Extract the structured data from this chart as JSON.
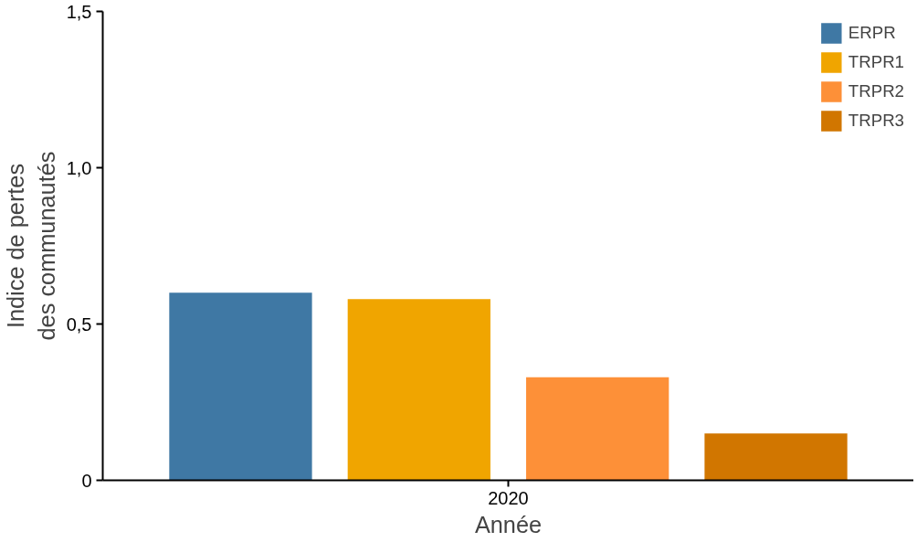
{
  "chart_data": {
    "type": "bar",
    "xlabel": "Année",
    "ylabel": "Indice de pertes\ndes communautés",
    "categories": [
      "2020"
    ],
    "series": [
      {
        "name": "ERPR",
        "color": "#3f78a4",
        "values": [
          0.6
        ]
      },
      {
        "name": "TRPR1",
        "color": "#f0a500",
        "values": [
          0.58
        ]
      },
      {
        "name": "TRPR2",
        "color": "#fd9038",
        "values": [
          0.33
        ]
      },
      {
        "name": "TRPR3",
        "color": "#d17600",
        "values": [
          0.15
        ]
      }
    ],
    "ylim": [
      0,
      1.5
    ],
    "yticks": [
      0,
      {
        "value": 0.5,
        "label": "0,5"
      },
      {
        "value": 1.0,
        "label": "1,0"
      },
      {
        "value": 1.5,
        "label": "1,5"
      }
    ],
    "grid": false,
    "legend": "top right"
  }
}
